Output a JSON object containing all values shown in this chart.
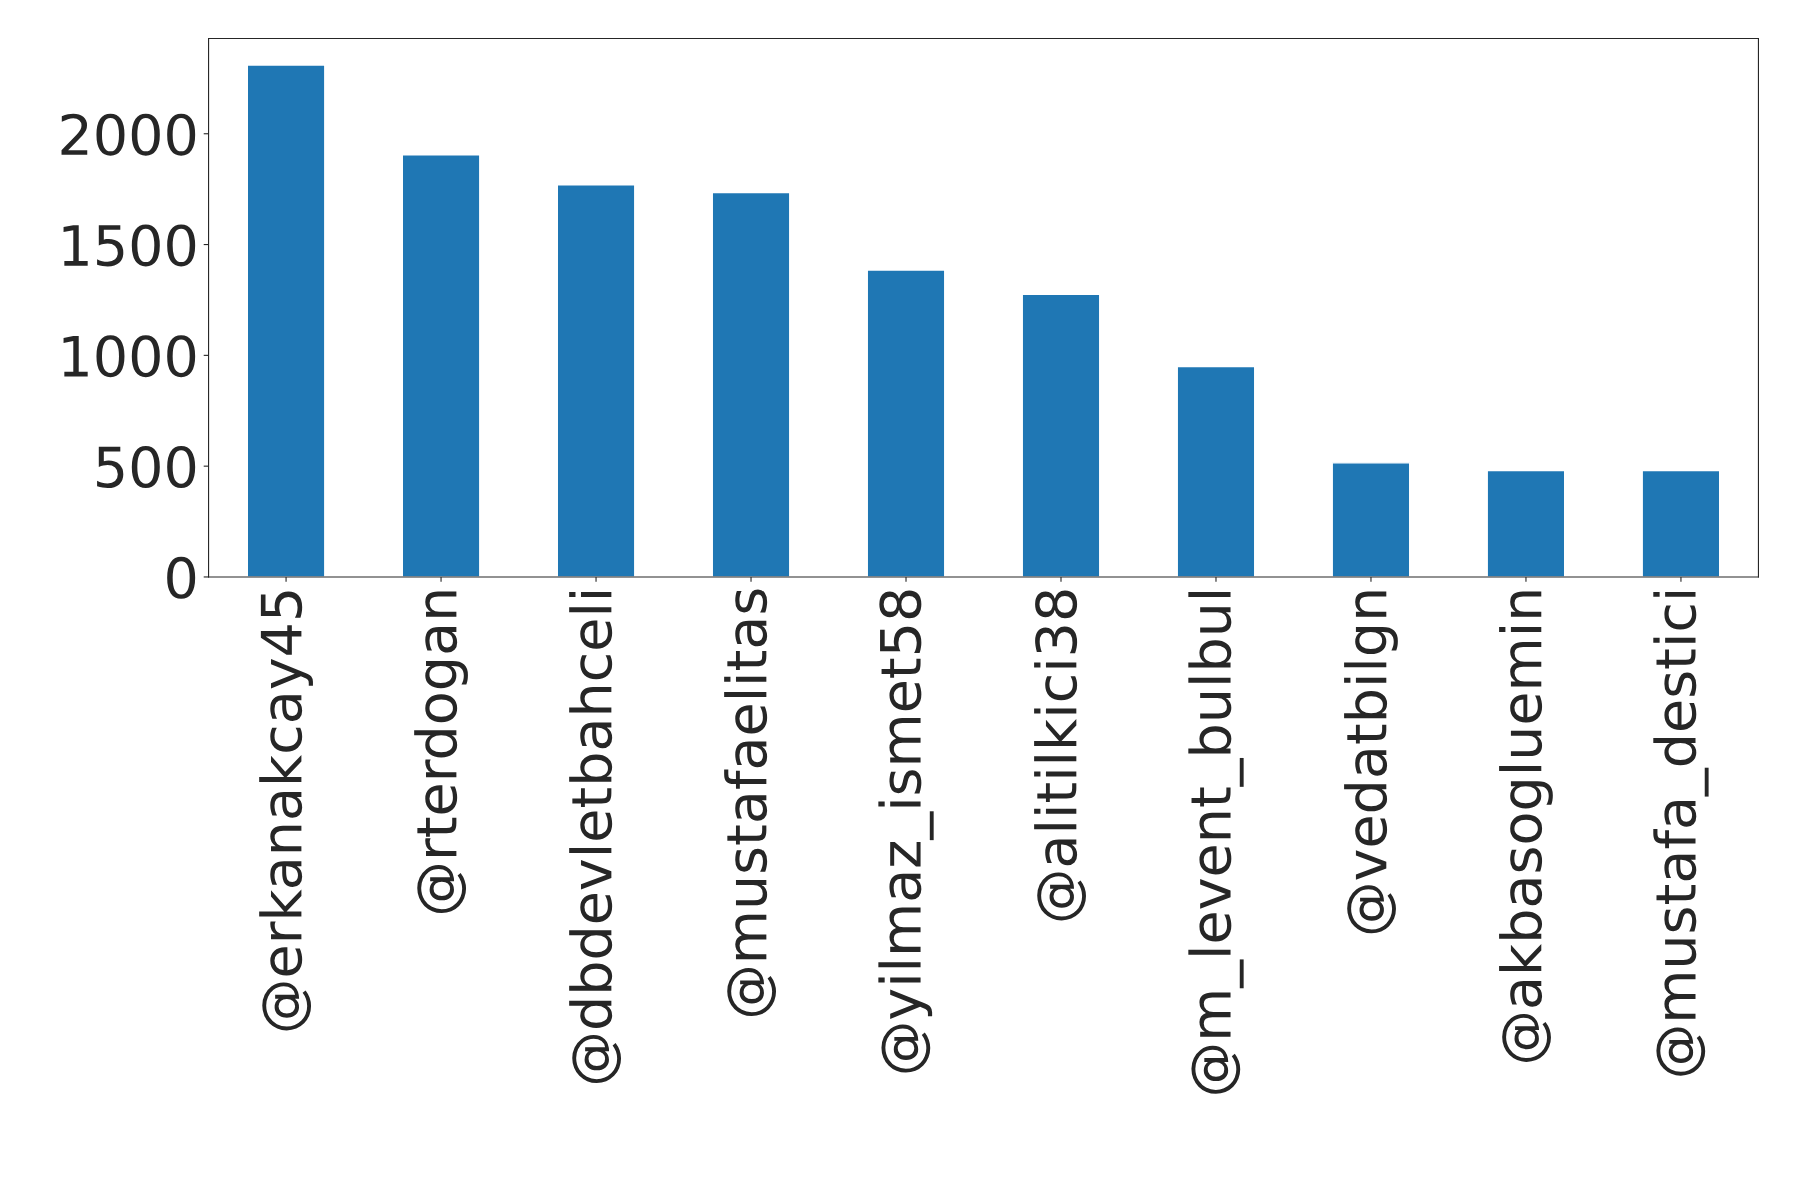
{
  "chart_data": {
    "type": "bar",
    "categories": [
      "@erkanakcay45",
      "@rterdogan",
      "@dbdevletbahceli",
      "@mustafaelitas",
      "@yilmaz_ismet58",
      "@alitilkici38",
      "@m_levent_bulbul",
      "@vedatbilgn",
      "@akbasogluemin",
      "@mustafa_destici"
    ],
    "values": [
      2310,
      1905,
      1770,
      1735,
      1385,
      1275,
      950,
      515,
      480,
      480
    ],
    "color": "#1f77b4",
    "ylim": [
      0,
      2430
    ],
    "yticks": [
      0,
      500,
      1000,
      1500,
      2000
    ],
    "grid": false,
    "legend": false
  }
}
